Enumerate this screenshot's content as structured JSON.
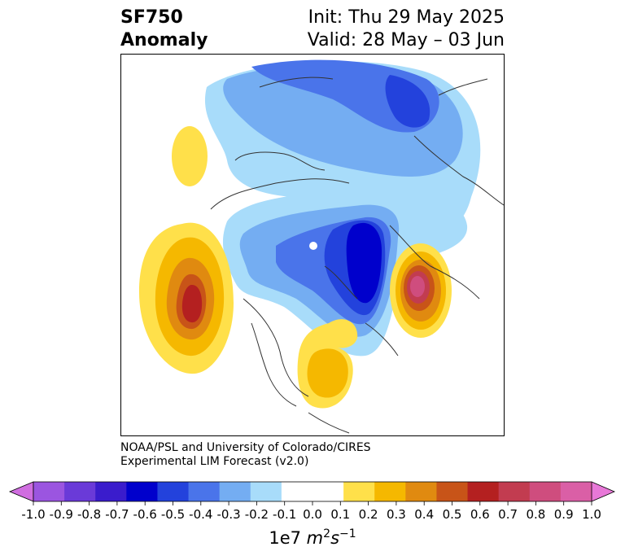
{
  "title": {
    "line1": "SF750",
    "line2": "Anomaly"
  },
  "subtitle": {
    "line1": "Init: Thu 29 May 2025",
    "line2": "Valid: 28 May – 03 Jun"
  },
  "credit": {
    "line1": "NOAA/PSL and University of Colorado/CIRES",
    "line2": "Experimental LIM Forecast (v2.0)"
  },
  "colorbar": {
    "ticks": [
      "-1.0",
      "-0.9",
      "-0.8",
      "-0.7",
      "-0.6",
      "-0.5",
      "-0.4",
      "-0.3",
      "-0.2",
      "-0.1",
      "0.0",
      "0.1",
      "0.2",
      "0.3",
      "0.4",
      "0.5",
      "0.6",
      "0.7",
      "0.8",
      "0.9",
      "1.0"
    ],
    "colors": [
      "#9b55e0",
      "#6a3ad8",
      "#3a1ccc",
      "#0000cc",
      "#2342dc",
      "#4a74ea",
      "#74adf2",
      "#a8dcfa",
      "#ffffff",
      "#ffffff",
      "#ffe04a",
      "#f5b800",
      "#e08a10",
      "#c85418",
      "#b42020",
      "#c23c50",
      "#cf4d7e",
      "#da5fa6"
    ],
    "extend_low_color": "#d06ee0",
    "extend_high_color": "#e878d8",
    "unit_prefix": "1e7 ",
    "unit_m": "m",
    "unit_m_exp": "2",
    "unit_s": "s",
    "unit_s_exp": "−1"
  }
}
